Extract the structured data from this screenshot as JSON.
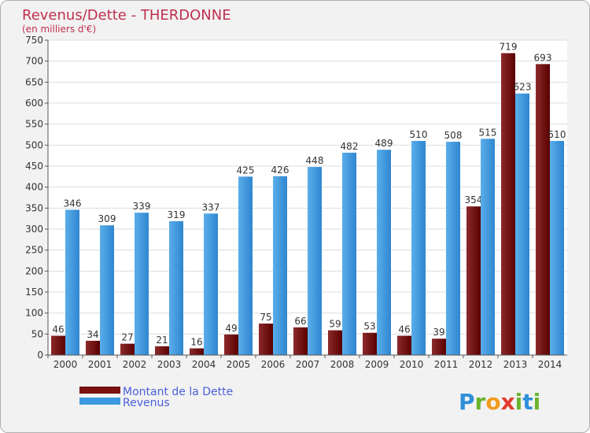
{
  "chart_data": {
    "type": "bar",
    "title": "Revenus/Dette - THERDONNE",
    "subtitle": "(en milliers d'€)",
    "xlabel": "",
    "ylabel": "",
    "ylim": [
      0,
      750
    ],
    "ytick_step": 50,
    "grid": true,
    "categories": [
      "2000",
      "2001",
      "2002",
      "2003",
      "2004",
      "2005",
      "2006",
      "2007",
      "2008",
      "2009",
      "2010",
      "2011",
      "2012",
      "2013",
      "2014"
    ],
    "series": [
      {
        "name": "Montant de la Dette",
        "color": "#7a1212",
        "values": [
          46,
          34,
          27,
          21,
          16,
          49,
          75,
          66,
          59,
          53,
          46,
          39,
          354,
          719,
          693
        ]
      },
      {
        "name": "Revenus",
        "color": "#3b9ae1",
        "values": [
          346,
          309,
          339,
          319,
          337,
          425,
          426,
          448,
          482,
          489,
          510,
          508,
          515,
          623,
          510
        ]
      }
    ],
    "legend_position": "bottom-left"
  },
  "branding": {
    "logo_letters": [
      "P",
      "r",
      "o",
      "x",
      "i",
      "t",
      "i"
    ],
    "logo_colors": [
      "#2f8fd8",
      "#6ab42d",
      "#f29a1f",
      "#e23b2e",
      "#6ab42d",
      "#2f8fd8",
      "#6ab42d"
    ]
  }
}
